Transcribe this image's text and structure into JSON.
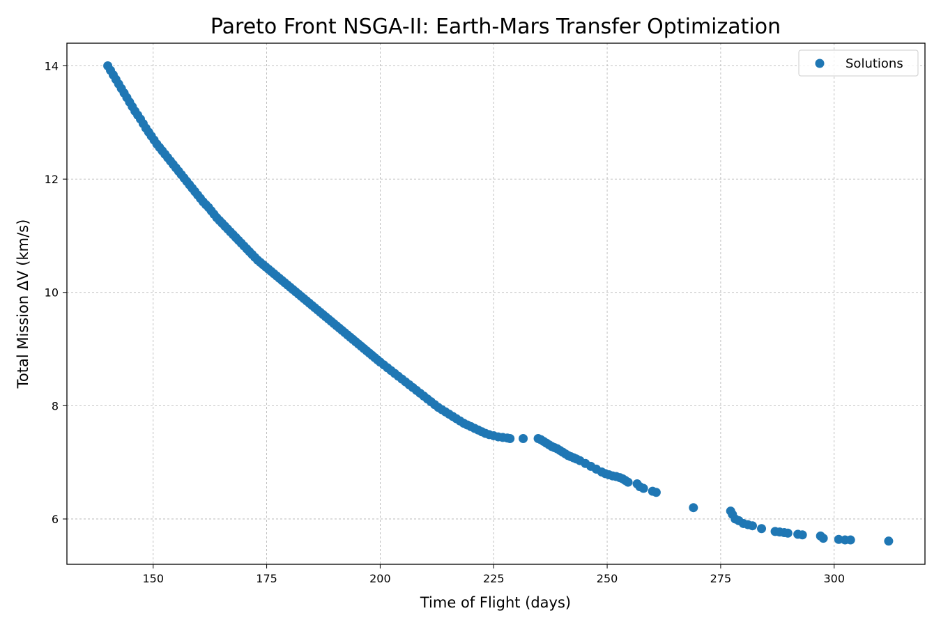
{
  "chart_data": {
    "type": "scatter",
    "title": "Pareto Front NSGA-II: Earth-Mars Transfer Optimization",
    "xlabel": "Time of Flight (days)",
    "ylabel": "Total Mission ΔV (km/s)",
    "xlim": [
      131,
      320
    ],
    "ylim": [
      5.2,
      14.4
    ],
    "xticks": [
      150,
      175,
      200,
      225,
      250,
      275,
      300
    ],
    "yticks": [
      6,
      8,
      10,
      12,
      14
    ],
    "grid": true,
    "legend_position": "top-right",
    "series": [
      {
        "name": "Solutions",
        "color": "#1f77b4",
        "points": [
          [
            140.0,
            14.0
          ],
          [
            140.6,
            13.92
          ],
          [
            141.2,
            13.84
          ],
          [
            141.8,
            13.76
          ],
          [
            142.4,
            13.68
          ],
          [
            143.0,
            13.6
          ],
          [
            143.6,
            13.52
          ],
          [
            144.2,
            13.44
          ],
          [
            144.8,
            13.36
          ],
          [
            145.4,
            13.28
          ],
          [
            146.0,
            13.2
          ],
          [
            146.6,
            13.13
          ],
          [
            147.2,
            13.06
          ],
          [
            147.8,
            12.98
          ],
          [
            148.4,
            12.9
          ],
          [
            149.0,
            12.83
          ],
          [
            149.6,
            12.76
          ],
          [
            150.2,
            12.69
          ],
          [
            150.8,
            12.62
          ],
          [
            151.4,
            12.56
          ],
          [
            152.0,
            12.5
          ],
          [
            152.6,
            12.44
          ],
          [
            153.2,
            12.38
          ],
          [
            153.8,
            12.32
          ],
          [
            154.4,
            12.26
          ],
          [
            155.0,
            12.2
          ],
          [
            155.6,
            12.14
          ],
          [
            156.2,
            12.08
          ],
          [
            156.8,
            12.02
          ],
          [
            157.4,
            11.96
          ],
          [
            158.0,
            11.9
          ],
          [
            158.6,
            11.84
          ],
          [
            159.2,
            11.78
          ],
          [
            159.8,
            11.72
          ],
          [
            160.4,
            11.66
          ],
          [
            161.0,
            11.6
          ],
          [
            161.6,
            11.55
          ],
          [
            162.2,
            11.5
          ],
          [
            162.8,
            11.44
          ],
          [
            163.4,
            11.38
          ],
          [
            164.0,
            11.32
          ],
          [
            164.6,
            11.27
          ],
          [
            165.2,
            11.22
          ],
          [
            165.8,
            11.17
          ],
          [
            166.4,
            11.12
          ],
          [
            167.0,
            11.07
          ],
          [
            167.6,
            11.02
          ],
          [
            168.2,
            10.97
          ],
          [
            168.8,
            10.92
          ],
          [
            169.4,
            10.87
          ],
          [
            170.0,
            10.82
          ],
          [
            170.6,
            10.77
          ],
          [
            171.2,
            10.72
          ],
          [
            171.8,
            10.67
          ],
          [
            172.4,
            10.62
          ],
          [
            173.0,
            10.57
          ],
          [
            173.6,
            10.53
          ],
          [
            174.2,
            10.49
          ],
          [
            174.8,
            10.45
          ],
          [
            175.4,
            10.41
          ],
          [
            176.0,
            10.37
          ],
          [
            176.6,
            10.33
          ],
          [
            177.2,
            10.29
          ],
          [
            177.8,
            10.25
          ],
          [
            178.4,
            10.21
          ],
          [
            179.0,
            10.17
          ],
          [
            179.6,
            10.13
          ],
          [
            180.2,
            10.09
          ],
          [
            180.8,
            10.05
          ],
          [
            181.4,
            10.01
          ],
          [
            182.0,
            9.97
          ],
          [
            182.6,
            9.93
          ],
          [
            183.2,
            9.89
          ],
          [
            183.8,
            9.85
          ],
          [
            184.4,
            9.81
          ],
          [
            185.0,
            9.77
          ],
          [
            185.6,
            9.73
          ],
          [
            186.2,
            9.69
          ],
          [
            186.8,
            9.65
          ],
          [
            187.4,
            9.61
          ],
          [
            188.0,
            9.57
          ],
          [
            188.6,
            9.53
          ],
          [
            189.2,
            9.49
          ],
          [
            189.8,
            9.45
          ],
          [
            190.4,
            9.41
          ],
          [
            191.0,
            9.37
          ],
          [
            191.6,
            9.33
          ],
          [
            192.2,
            9.29
          ],
          [
            192.8,
            9.25
          ],
          [
            193.4,
            9.21
          ],
          [
            194.0,
            9.17
          ],
          [
            194.6,
            9.13
          ],
          [
            195.2,
            9.09
          ],
          [
            195.8,
            9.05
          ],
          [
            196.4,
            9.01
          ],
          [
            197.0,
            8.97
          ],
          [
            197.6,
            8.93
          ],
          [
            198.2,
            8.89
          ],
          [
            198.8,
            8.85
          ],
          [
            199.4,
            8.81
          ],
          [
            200.0,
            8.77
          ],
          [
            200.8,
            8.72
          ],
          [
            201.6,
            8.67
          ],
          [
            202.4,
            8.62
          ],
          [
            203.2,
            8.57
          ],
          [
            204.0,
            8.52
          ],
          [
            204.8,
            8.47
          ],
          [
            205.6,
            8.42
          ],
          [
            206.4,
            8.37
          ],
          [
            207.2,
            8.32
          ],
          [
            208.0,
            8.27
          ],
          [
            208.8,
            8.22
          ],
          [
            209.6,
            8.17
          ],
          [
            210.4,
            8.12
          ],
          [
            211.2,
            8.07
          ],
          [
            212.0,
            8.02
          ],
          [
            212.8,
            7.97
          ],
          [
            213.6,
            7.93
          ],
          [
            214.4,
            7.89
          ],
          [
            215.2,
            7.85
          ],
          [
            216.0,
            7.81
          ],
          [
            216.8,
            7.77
          ],
          [
            217.6,
            7.73
          ],
          [
            218.4,
            7.69
          ],
          [
            219.2,
            7.66
          ],
          [
            220.0,
            7.63
          ],
          [
            220.8,
            7.6
          ],
          [
            221.6,
            7.57
          ],
          [
            222.4,
            7.54
          ],
          [
            223.2,
            7.51
          ],
          [
            224.0,
            7.49
          ],
          [
            225.0,
            7.47
          ],
          [
            226.0,
            7.45
          ],
          [
            227.0,
            7.44
          ],
          [
            228.0,
            7.43
          ],
          [
            228.6,
            7.42
          ],
          [
            231.5,
            7.42
          ],
          [
            234.8,
            7.42
          ],
          [
            235.4,
            7.4
          ],
          [
            236.0,
            7.37
          ],
          [
            236.6,
            7.34
          ],
          [
            237.2,
            7.31
          ],
          [
            237.8,
            7.28
          ],
          [
            238.4,
            7.26
          ],
          [
            239.0,
            7.24
          ],
          [
            239.6,
            7.21
          ],
          [
            240.2,
            7.18
          ],
          [
            240.8,
            7.15
          ],
          [
            241.4,
            7.12
          ],
          [
            242.0,
            7.1
          ],
          [
            242.6,
            7.08
          ],
          [
            243.2,
            7.06
          ],
          [
            244.0,
            7.03
          ],
          [
            245.2,
            6.98
          ],
          [
            246.4,
            6.93
          ],
          [
            247.6,
            6.88
          ],
          [
            248.8,
            6.83
          ],
          [
            249.6,
            6.8
          ],
          [
            250.4,
            6.78
          ],
          [
            251.2,
            6.76
          ],
          [
            252.0,
            6.75
          ],
          [
            252.8,
            6.73
          ],
          [
            253.4,
            6.71
          ],
          [
            254.0,
            6.68
          ],
          [
            254.6,
            6.65
          ],
          [
            256.6,
            6.62
          ],
          [
            257.2,
            6.57
          ],
          [
            258.0,
            6.54
          ],
          [
            260.0,
            6.49
          ],
          [
            260.8,
            6.47
          ],
          [
            269.0,
            6.2
          ],
          [
            277.2,
            6.14
          ],
          [
            277.6,
            6.08
          ],
          [
            278.2,
            6.0
          ],
          [
            279.0,
            5.97
          ],
          [
            280.0,
            5.92
          ],
          [
            281.0,
            5.9
          ],
          [
            282.0,
            5.88
          ],
          [
            284.0,
            5.83
          ],
          [
            287.0,
            5.78
          ],
          [
            288.0,
            5.77
          ],
          [
            289.0,
            5.76
          ],
          [
            289.8,
            5.75
          ],
          [
            292.0,
            5.73
          ],
          [
            293.0,
            5.72
          ],
          [
            297.0,
            5.7
          ],
          [
            297.6,
            5.66
          ],
          [
            301.0,
            5.64
          ],
          [
            302.4,
            5.63
          ],
          [
            303.6,
            5.63
          ],
          [
            312.0,
            5.61
          ]
        ]
      }
    ]
  }
}
